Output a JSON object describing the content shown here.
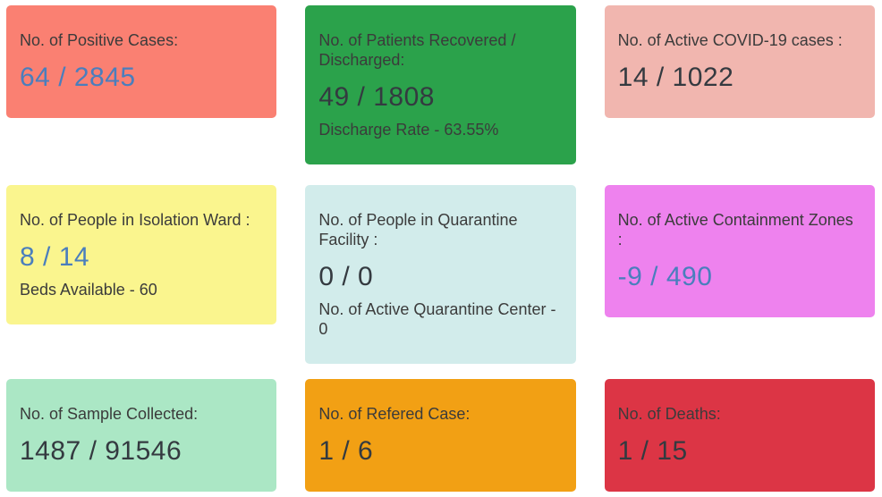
{
  "dashboard": {
    "cards": [
      {
        "name": "positive-cases",
        "title": "No. of Positive Cases:",
        "value": "64 / 2845",
        "bg": "#fa8072",
        "value_color": "#4a7ebd"
      },
      {
        "name": "patients-recovered-discharged",
        "title": "No. of Patients Recovered / Discharged:",
        "value": "49 / 1808",
        "subtext": "Discharge Rate - 63.55%",
        "bg": "#2ba24b",
        "value_color": "#343a40"
      },
      {
        "name": "active-covid19-cases",
        "title": "No. of Active COVID-19 cases :",
        "value": "14 / 1022",
        "bg": "#f1b6af",
        "value_color": "#343a40"
      },
      {
        "name": "people-in-isolation-ward",
        "title": "No. of People in Isolation Ward :",
        "value": "8 / 14",
        "subtext": "Beds Available - 60",
        "bg": "#faf58e",
        "value_color": "#4a7ebd"
      },
      {
        "name": "people-in-quarantine-facility",
        "title": "No. of People in Quarantine Facility :",
        "value": "0 / 0",
        "subtext": "No. of Active Quarantine Center - 0",
        "bg": "#d2eceb",
        "value_color": "#343a40"
      },
      {
        "name": "active-containment-zones",
        "title": "No. of Active Containment Zones :",
        "value": "-9 / 490",
        "bg": "#ee82ee",
        "value_color": "#4a7ebd"
      },
      {
        "name": "sample-collected",
        "title": "No. of Sample Collected:",
        "value": "1487 / 91546",
        "bg": "#abe7c5",
        "value_color": "#343a40"
      },
      {
        "name": "refered-case",
        "title": "No. of Refered Case:",
        "value": "1 / 6",
        "bg": "#f2a014",
        "value_color": "#343a40"
      },
      {
        "name": "deaths",
        "title": "No. of Deaths:",
        "value": "1 / 15",
        "bg": "#dc3545",
        "value_color": "#343a40"
      }
    ]
  }
}
